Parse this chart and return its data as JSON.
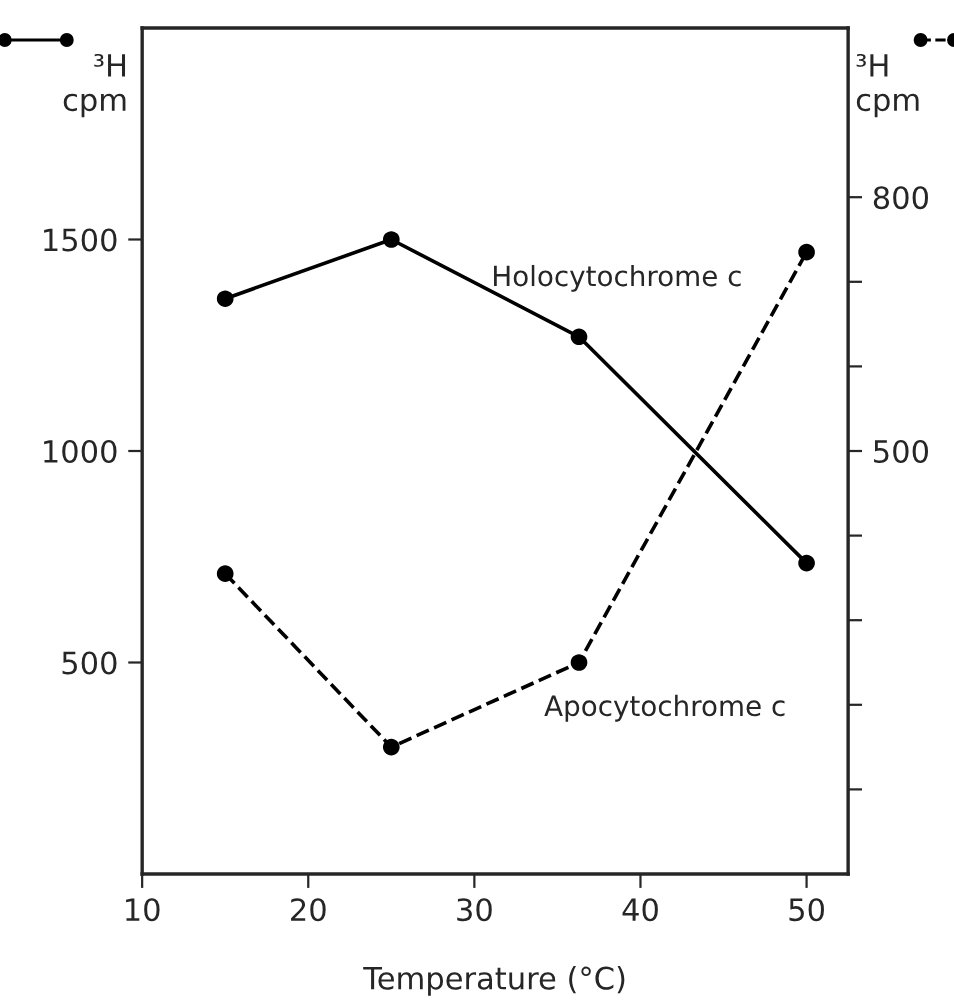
{
  "chart_data": {
    "type": "line",
    "xlabel": "Temperature (°C)",
    "ylabel": "³H\ncpm",
    "y2label": "³H\ncpm",
    "x": [
      15,
      25,
      36.3,
      50
    ],
    "xlim": [
      10,
      52.5
    ],
    "xticks": [
      10,
      20,
      30,
      40,
      50
    ],
    "ylim": [
      0,
      2000
    ],
    "yticks": [
      500,
      1000,
      1500
    ],
    "y2lim": [
      0,
      1000
    ],
    "y2ticks": [
      {
        "value": 100,
        "label": null
      },
      {
        "value": 200,
        "label": null
      },
      {
        "value": 300,
        "label": null
      },
      {
        "value": 400,
        "label": null
      },
      500,
      {
        "value": 600,
        "label": null
      },
      {
        "value": 700,
        "label": null
      },
      800
    ],
    "marker": "circle",
    "legend": false,
    "grid": false,
    "series": [
      {
        "name": "Holocytochrome c",
        "color": "#000000",
        "line_style": "solid",
        "values": [
          1360,
          1500,
          1270,
          735
        ]
      },
      {
        "name": "Apocytochrome c",
        "color": "#000000",
        "line_style": "dashed",
        "axis": "y2",
        "values": [
          355,
          150,
          250,
          735
        ]
      }
    ]
  }
}
